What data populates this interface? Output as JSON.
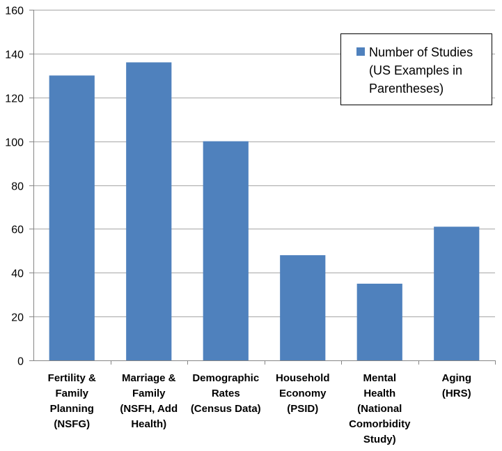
{
  "chart_data": {
    "type": "bar",
    "title": "",
    "xlabel": "",
    "ylabel": "",
    "ylim": [
      0,
      160
    ],
    "yticks": [
      0,
      20,
      40,
      60,
      80,
      100,
      120,
      140,
      160
    ],
    "grid": true,
    "legend_position": "top-right",
    "categories": [
      [
        "Fertility &",
        "Family",
        "Planning",
        "(NSFG)"
      ],
      [
        "Marriage &",
        "Family",
        "(NSFH, Add",
        "Health)"
      ],
      [
        "Demographic",
        "Rates",
        "(Census Data)"
      ],
      [
        "Household",
        "Economy",
        "(PSID)"
      ],
      [
        "Mental",
        "Health",
        "(National",
        "Comorbidity",
        "Study)"
      ],
      [
        "Aging",
        "(HRS)"
      ]
    ],
    "series": [
      {
        "name": [
          "Number of Studies",
          "(US Examples in",
          "Parentheses)"
        ],
        "values": [
          130,
          136,
          100,
          48,
          35,
          61
        ],
        "color": "#4f81bd"
      }
    ],
    "colors": {
      "grid": "#a6a6a6",
      "axis": "#868686",
      "bar": "#4f81bd",
      "legend_border": "#000000"
    }
  }
}
